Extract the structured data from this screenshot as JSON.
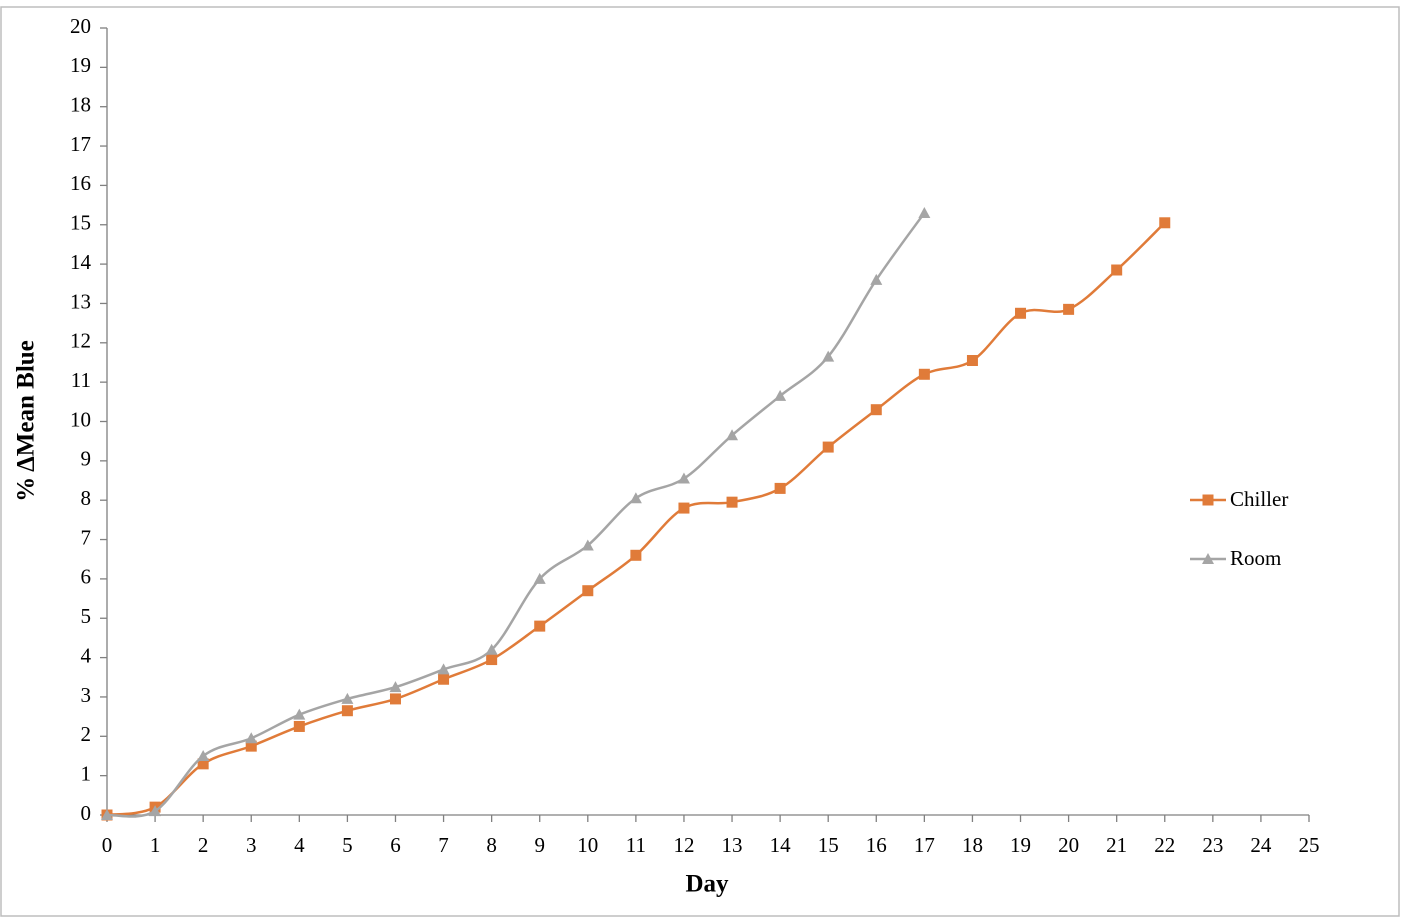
{
  "chart_data": {
    "type": "line",
    "x_label": "Day",
    "y_label": "% ΔMean Blue",
    "x": [
      0,
      1,
      2,
      3,
      4,
      5,
      6,
      7,
      8,
      9,
      10,
      11,
      12,
      13,
      14,
      15,
      16,
      17,
      18,
      19,
      20,
      21,
      22
    ],
    "series": [
      {
        "name": "Chiller",
        "color": "#e07b39",
        "marker": "square",
        "values": [
          0,
          0.2,
          1.3,
          1.75,
          2.25,
          2.65,
          2.95,
          3.45,
          3.95,
          4.8,
          5.7,
          6.6,
          7.8,
          7.95,
          8.3,
          9.35,
          10.3,
          11.2,
          11.55,
          12.75,
          12.85,
          13.85,
          15.05
        ]
      },
      {
        "name": "Room",
        "color": "#a5a5a5",
        "marker": "triangle",
        "values": [
          0,
          0.1,
          1.5,
          1.95,
          2.55,
          2.95,
          3.25,
          3.7,
          4.2,
          6.0,
          6.85,
          8.05,
          8.55,
          9.65,
          10.65,
          11.65,
          13.6,
          15.3,
          null,
          null,
          null,
          null,
          null
        ]
      }
    ],
    "xlim": [
      0,
      25
    ],
    "xticks": [
      0,
      1,
      2,
      3,
      4,
      5,
      6,
      7,
      8,
      9,
      10,
      11,
      12,
      13,
      14,
      15,
      16,
      17,
      18,
      19,
      20,
      21,
      22,
      23,
      24,
      25
    ],
    "ylim": [
      0,
      20
    ],
    "yticks": [
      0,
      1,
      2,
      3,
      4,
      5,
      6,
      7,
      8,
      9,
      10,
      11,
      12,
      13,
      14,
      15,
      16,
      17,
      18,
      19,
      20
    ],
    "legend": "right",
    "smooth": true
  }
}
